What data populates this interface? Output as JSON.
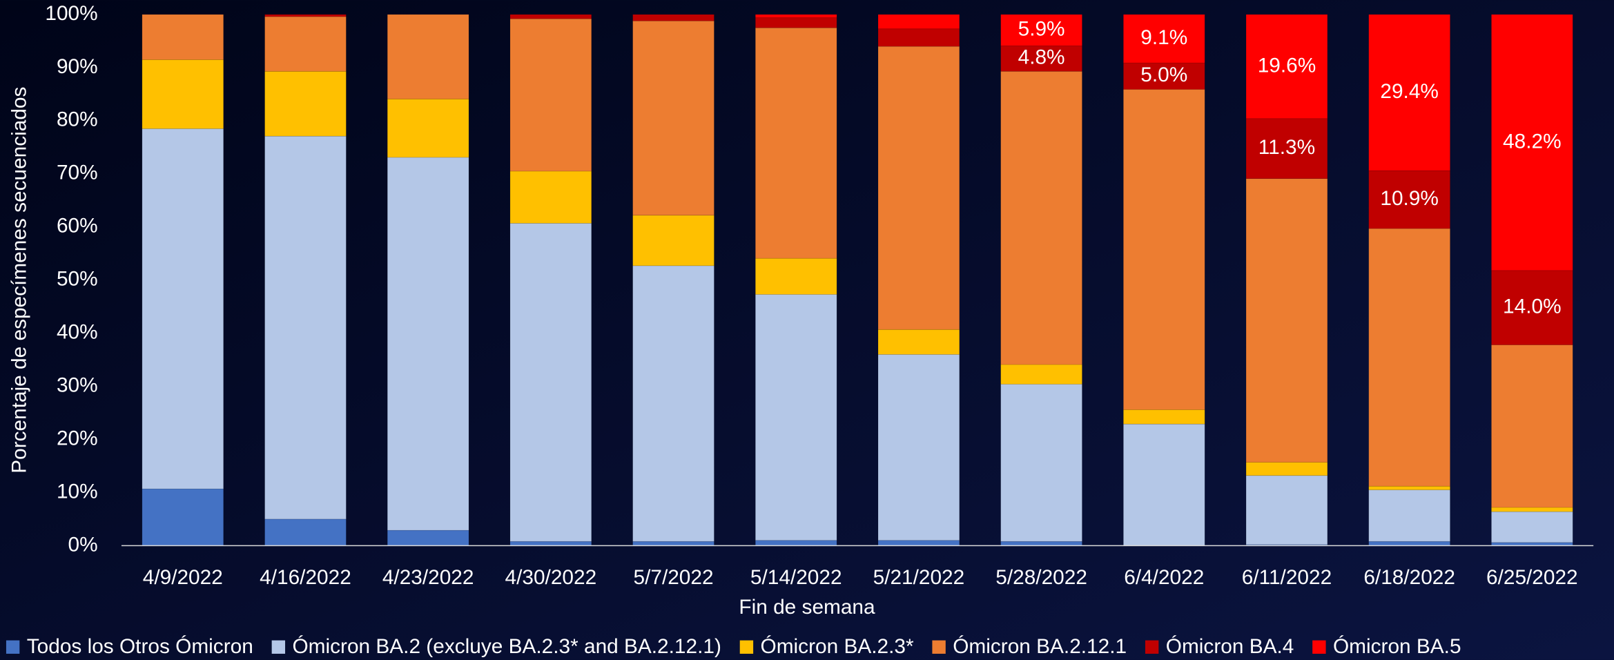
{
  "chart_data": {
    "type": "stacked_bar",
    "x_label": "Fin de semana",
    "y_label": "Porcentaje de especímenes secuenciados",
    "categories": [
      "4/9/2022",
      "4/16/2022",
      "4/23/2022",
      "4/30/2022",
      "5/7/2022",
      "5/14/2022",
      "5/21/2022",
      "5/28/2022",
      "6/4/2022",
      "6/11/2022",
      "6/18/2022",
      "6/25/2022"
    ],
    "series": [
      {
        "name": "Todos los Otros Ómicron",
        "color": "#4472c4",
        "values": [
          10.7,
          5.0,
          2.9,
          0.8,
          0.8,
          1.0,
          1.0,
          0.8,
          0.0,
          0.2,
          0.8,
          0.6
        ]
      },
      {
        "name": "Ómicron BA.2 (excluye BA.2.3* and BA.2.12.1)",
        "color": "#b4c7e7",
        "values": [
          67.8,
          72.1,
          70.2,
          59.9,
          51.9,
          46.3,
          35.0,
          29.6,
          22.9,
          13.0,
          9.7,
          5.8
        ]
      },
      {
        "name": "Ómicron BA.2.3*",
        "color": "#ffc000",
        "values": [
          13.0,
          12.2,
          11.0,
          9.8,
          9.5,
          6.8,
          4.7,
          3.7,
          2.7,
          2.5,
          0.7,
          0.8
        ]
      },
      {
        "name": "Ómicron BA.2.12.1",
        "color": "#ed7d31",
        "values": [
          8.5,
          10.3,
          15.9,
          28.7,
          36.6,
          43.4,
          53.3,
          55.2,
          60.3,
          53.4,
          48.5,
          30.6
        ]
      },
      {
        "name": "Ómicron BA.4",
        "color": "#c00000",
        "values": [
          0,
          0.4,
          0,
          0.8,
          1.2,
          1.9,
          3.3,
          4.8,
          5.0,
          11.3,
          10.9,
          14.0
        ],
        "value_labels": [
          null,
          null,
          null,
          null,
          null,
          null,
          null,
          "4.8%",
          "5.0%",
          "11.3%",
          "10.9%",
          "14.0%"
        ]
      },
      {
        "name": "Ómicron BA.5",
        "color": "#ff0000",
        "values": [
          0,
          0,
          0,
          0,
          0,
          0.6,
          2.7,
          5.9,
          9.1,
          19.6,
          29.4,
          48.2
        ],
        "value_labels": [
          null,
          null,
          null,
          null,
          null,
          null,
          null,
          "5.9%",
          "9.1%",
          "19.6%",
          "29.4%",
          "48.2%"
        ]
      }
    ],
    "ylim": [
      0,
      100
    ],
    "yticks": [
      {
        "value": 0,
        "label": "0%"
      },
      {
        "value": 10,
        "label": "10%"
      },
      {
        "value": 20,
        "label": "20%"
      },
      {
        "value": 30,
        "label": "30%"
      },
      {
        "value": 40,
        "label": "40%"
      },
      {
        "value": 50,
        "label": "50%"
      },
      {
        "value": 60,
        "label": "60%"
      },
      {
        "value": 70,
        "label": "70%"
      },
      {
        "value": 80,
        "label": "80%"
      },
      {
        "value": 90,
        "label": "90%"
      },
      {
        "value": 100,
        "label": "100%"
      }
    ],
    "legend": "bottom"
  }
}
